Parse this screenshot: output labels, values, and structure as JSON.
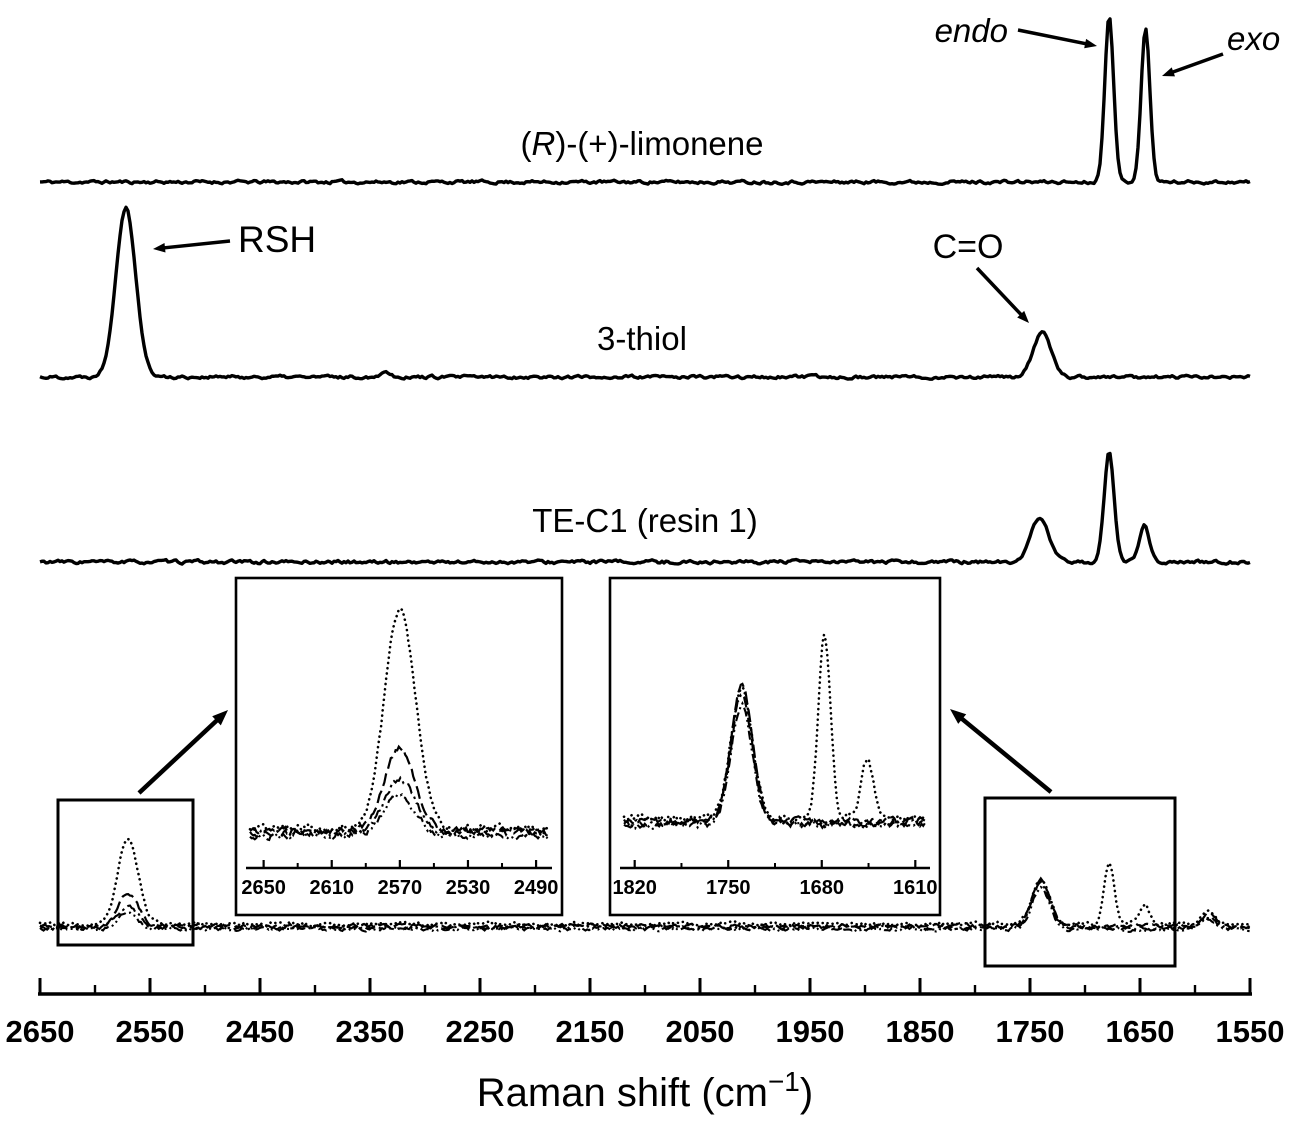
{
  "colors": {
    "ink": "#000000",
    "background": "#ffffff"
  },
  "chart_data": {
    "type": "line",
    "xlabel": "Raman shift (cm⁻¹)",
    "xlabel_parts": {
      "main": "Raman shift (cm",
      "sup": "−1",
      "close": ")"
    },
    "x_axis": {
      "range": [
        2650,
        1550
      ],
      "reversed": true,
      "ticks": [
        2650,
        2550,
        2450,
        2350,
        2250,
        2150,
        2050,
        1950,
        1850,
        1750,
        1650,
        1550
      ],
      "unit": "cm⁻¹"
    },
    "grid": false,
    "legend": false,
    "annotations": {
      "endo": "endo",
      "exo": "exo",
      "limonene": "(R)-(+)-limonene",
      "limonene_parts": {
        "pre": "(",
        "italic": "R",
        "post": ")-(+)-limonene"
      },
      "rsh": "RSH",
      "co": "C=O",
      "thiol": "3-thiol",
      "resin": "TE-C1 (resin 1)"
    },
    "spectra": [
      {
        "id": "limonene",
        "label": "(R)-(+)-limonene",
        "peaks": [
          {
            "center": 1678,
            "rel_height": 1.0,
            "width": 4,
            "assignment": "endo"
          },
          {
            "center": 1645,
            "rel_height": 0.91,
            "width": 4,
            "assignment": "exo"
          }
        ]
      },
      {
        "id": "thiol",
        "label": "3-thiol",
        "peaks": [
          {
            "center": 2572,
            "rel_height": 1.0,
            "width": 9,
            "assignment": "RSH"
          },
          {
            "center": 2336,
            "rel_height": 0.03,
            "width": 5
          },
          {
            "center": 1739,
            "rel_height": 0.26,
            "width": 8,
            "assignment": "C=O"
          }
        ]
      },
      {
        "id": "resin",
        "label": "TE-C1 (resin 1)",
        "peaks": [
          {
            "center": 1741,
            "rel_height": 0.41,
            "width": 8
          },
          {
            "center": 1678,
            "rel_height": 1.0,
            "width": 4.5
          },
          {
            "center": 1646,
            "rel_height": 0.35,
            "width": 4.5
          }
        ]
      }
    ],
    "overlay_series": [
      {
        "name": "spectrum-dotted",
        "line_style": "dotted",
        "peaks": [
          {
            "center": 2570,
            "rel_height": 0.95,
            "width": 9
          },
          {
            "center": 1740,
            "rel_height": 0.48,
            "width": 8
          },
          {
            "center": 1678,
            "rel_height": 0.68,
            "width": 4.5
          },
          {
            "center": 1646,
            "rel_height": 0.22,
            "width": 4.5
          },
          {
            "center": 1588,
            "rel_height": 0.13,
            "width": 6
          }
        ]
      },
      {
        "name": "spectrum-long-dash",
        "line_style": "long-dash",
        "peaks": [
          {
            "center": 2570,
            "rel_height": 0.36,
            "width": 9
          },
          {
            "center": 1740,
            "rel_height": 0.5,
            "width": 8
          },
          {
            "center": 1588,
            "rel_height": 0.13,
            "width": 6
          }
        ]
      },
      {
        "name": "spectrum-dash-dot",
        "line_style": "dash-dot",
        "peaks": [
          {
            "center": 2570,
            "rel_height": 0.23,
            "width": 9
          },
          {
            "center": 1740,
            "rel_height": 0.47,
            "width": 8
          },
          {
            "center": 1588,
            "rel_height": 0.12,
            "width": 6
          }
        ]
      },
      {
        "name": "spectrum-dash-dot-dot",
        "line_style": "dash-dot-dot",
        "peaks": [
          {
            "center": 2570,
            "rel_height": 0.17,
            "width": 9
          },
          {
            "center": 1740,
            "rel_height": 0.45,
            "width": 8
          },
          {
            "center": 1588,
            "rel_height": 0.11,
            "width": 6
          }
        ]
      }
    ],
    "insets": [
      {
        "id": "thiol-region",
        "x_range": [
          2658,
          2483
        ],
        "x_ticks": [
          2650,
          2610,
          2570,
          2530,
          2490
        ]
      },
      {
        "id": "carbonyl-region",
        "x_range": [
          1828,
          1602
        ],
        "x_ticks": [
          1820,
          1750,
          1680,
          1610
        ]
      }
    ]
  }
}
